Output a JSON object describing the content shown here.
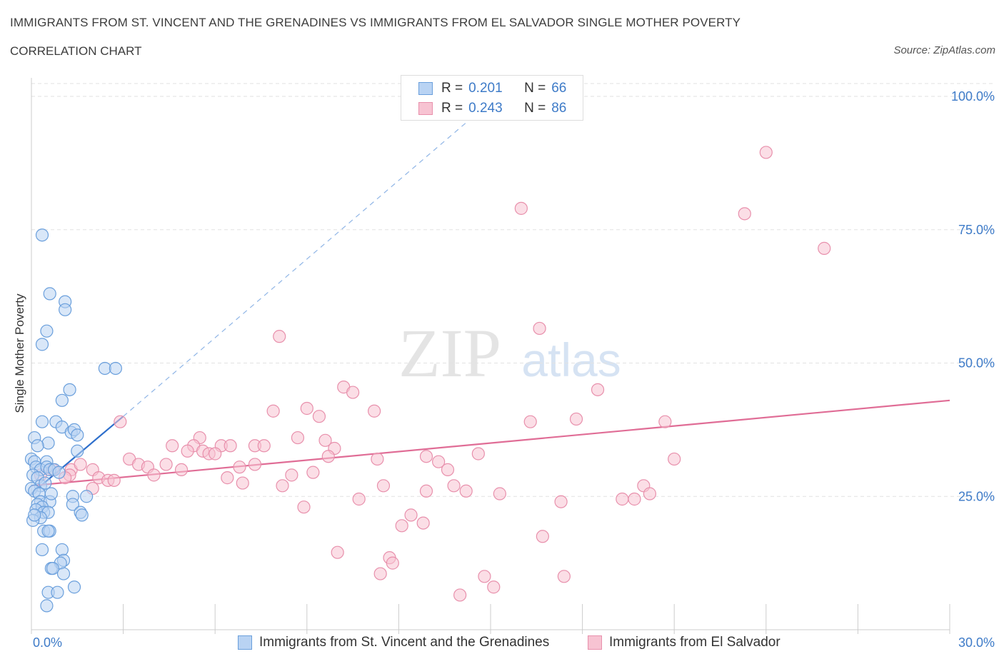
{
  "header": {
    "title": "IMMIGRANTS FROM ST. VINCENT AND THE GRENADINES VS IMMIGRANTS FROM EL SALVADOR SINGLE MOTHER POVERTY",
    "subtitle": "CORRELATION CHART",
    "source": "Source: ZipAtlas.com"
  },
  "watermark": {
    "zip": "ZIP",
    "atlas": "atlas"
  },
  "legend": {
    "r_label": "R =",
    "n_label": "N =",
    "series1": {
      "r": "0.201",
      "n": "66"
    },
    "series2": {
      "r": "0.243",
      "n": "86"
    }
  },
  "bottom_legend": {
    "series1": "Immigrants from St. Vincent and the Grenadines",
    "series2": "Immigrants from El Salvador"
  },
  "colors": {
    "series1_fill": "#b9d3f3",
    "series1_stroke": "#6a9fdc",
    "series1_line": "#2e6fcc",
    "series2_fill": "#f7c3d2",
    "series2_stroke": "#e890ac",
    "series2_line": "#e06d96",
    "tick_label": "#3e7bc8"
  },
  "chart_data": {
    "type": "scatter",
    "title": "IMMIGRANTS FROM ST. VINCENT AND THE GRENADINES VS IMMIGRANTS FROM EL SALVADOR SINGLE MOTHER POVERTY",
    "xlabel": "",
    "ylabel": "Single Mother Poverty",
    "xlim": [
      0,
      30
    ],
    "ylim": [
      0,
      100
    ],
    "x_tick_labels": [
      "0.0%",
      "30.0%"
    ],
    "y_ticks": [
      25,
      50,
      75,
      100
    ],
    "y_tick_labels": [
      "25.0%",
      "50.0%",
      "75.0%",
      "100.0%"
    ],
    "grid": true,
    "legend_position": "top-center",
    "series": [
      {
        "name": "Immigrants from St. Vincent and the Grenadines",
        "r": 0.201,
        "n": 66,
        "trend": {
          "x": [
            0.0,
            3.0
          ],
          "y": [
            25.5,
            40.0
          ],
          "extended_to": [
            15.0,
            99.0
          ]
        },
        "points": [
          [
            0.35,
            74.0
          ],
          [
            0.6,
            63.0
          ],
          [
            1.1,
            61.5
          ],
          [
            0.5,
            56.0
          ],
          [
            1.1,
            60.0
          ],
          [
            0.35,
            53.5
          ],
          [
            2.4,
            49.0
          ],
          [
            2.75,
            49.0
          ],
          [
            1.25,
            45.0
          ],
          [
            1.0,
            43.0
          ],
          [
            0.35,
            39.0
          ],
          [
            0.8,
            39.0
          ],
          [
            0.1,
            36.0
          ],
          [
            0.55,
            35.0
          ],
          [
            1.0,
            38.0
          ],
          [
            1.3,
            37.0
          ],
          [
            1.4,
            37.5
          ],
          [
            1.5,
            36.5
          ],
          [
            0.2,
            34.5
          ],
          [
            1.5,
            33.5
          ],
          [
            0.0,
            32.0
          ],
          [
            0.1,
            31.5
          ],
          [
            0.5,
            31.5
          ],
          [
            0.15,
            30.5
          ],
          [
            0.3,
            30.0
          ],
          [
            0.5,
            30.5
          ],
          [
            0.6,
            30.0
          ],
          [
            0.75,
            30.0
          ],
          [
            0.9,
            29.5
          ],
          [
            0.05,
            29.0
          ],
          [
            0.2,
            28.5
          ],
          [
            0.3,
            27.0
          ],
          [
            0.45,
            27.5
          ],
          [
            0.0,
            26.5
          ],
          [
            0.1,
            26.0
          ],
          [
            0.25,
            25.5
          ],
          [
            1.35,
            25.0
          ],
          [
            1.8,
            25.0
          ],
          [
            0.3,
            24.0
          ],
          [
            0.6,
            24.0
          ],
          [
            0.2,
            23.5
          ],
          [
            0.35,
            23.0
          ],
          [
            1.35,
            23.5
          ],
          [
            0.15,
            22.5
          ],
          [
            0.4,
            22.0
          ],
          [
            0.55,
            22.0
          ],
          [
            1.6,
            22.0
          ],
          [
            0.3,
            21.0
          ],
          [
            1.65,
            21.5
          ],
          [
            0.05,
            20.5
          ],
          [
            0.4,
            18.5
          ],
          [
            0.6,
            18.5
          ],
          [
            0.55,
            18.5
          ],
          [
            0.35,
            15.0
          ],
          [
            1.0,
            15.0
          ],
          [
            1.05,
            13.0
          ],
          [
            0.95,
            12.5
          ],
          [
            0.65,
            11.5
          ],
          [
            0.7,
            11.5
          ],
          [
            1.05,
            10.5
          ],
          [
            1.4,
            8.0
          ],
          [
            0.55,
            7.0
          ],
          [
            0.85,
            7.0
          ],
          [
            0.5,
            4.5
          ],
          [
            0.1,
            21.5
          ],
          [
            0.65,
            25.5
          ]
        ]
      },
      {
        "name": "Immigrants from El Salvador",
        "r": 0.243,
        "n": 86,
        "trend": {
          "x": [
            0.0,
            30.0
          ],
          "y": [
            27.0,
            43.0
          ]
        },
        "points": [
          [
            24.0,
            89.5
          ],
          [
            16.0,
            79.0
          ],
          [
            23.3,
            78.0
          ],
          [
            25.9,
            71.5
          ],
          [
            16.6,
            56.5
          ],
          [
            8.1,
            55.0
          ],
          [
            10.2,
            45.5
          ],
          [
            10.5,
            44.5
          ],
          [
            18.5,
            45.0
          ],
          [
            7.9,
            41.0
          ],
          [
            9.0,
            41.5
          ],
          [
            9.4,
            40.0
          ],
          [
            11.2,
            41.0
          ],
          [
            16.3,
            39.0
          ],
          [
            17.8,
            39.5
          ],
          [
            20.7,
            39.0
          ],
          [
            2.9,
            39.0
          ],
          [
            4.6,
            34.5
          ],
          [
            5.5,
            36.0
          ],
          [
            5.3,
            34.5
          ],
          [
            5.1,
            33.5
          ],
          [
            5.6,
            33.5
          ],
          [
            5.8,
            33.0
          ],
          [
            6.2,
            34.5
          ],
          [
            6.0,
            33.0
          ],
          [
            6.5,
            34.5
          ],
          [
            7.3,
            34.5
          ],
          [
            7.6,
            34.5
          ],
          [
            8.7,
            36.0
          ],
          [
            9.6,
            35.5
          ],
          [
            9.9,
            34.0
          ],
          [
            9.7,
            32.5
          ],
          [
            7.3,
            31.0
          ],
          [
            6.8,
            30.5
          ],
          [
            3.2,
            32.0
          ],
          [
            3.5,
            31.0
          ],
          [
            4.4,
            31.0
          ],
          [
            4.9,
            30.0
          ],
          [
            3.8,
            30.5
          ],
          [
            2.0,
            30.0
          ],
          [
            2.2,
            28.5
          ],
          [
            2.5,
            28.0
          ],
          [
            2.7,
            28.0
          ],
          [
            1.3,
            30.0
          ],
          [
            1.6,
            31.0
          ],
          [
            1.25,
            29.0
          ],
          [
            0.7,
            30.0
          ],
          [
            0.3,
            29.0
          ],
          [
            1.1,
            28.5
          ],
          [
            4.0,
            29.0
          ],
          [
            6.4,
            28.5
          ],
          [
            6.9,
            27.5
          ],
          [
            8.2,
            27.0
          ],
          [
            8.5,
            29.0
          ],
          [
            11.3,
            32.0
          ],
          [
            13.3,
            31.5
          ],
          [
            13.6,
            30.0
          ],
          [
            12.9,
            32.5
          ],
          [
            14.6,
            33.0
          ],
          [
            15.3,
            25.5
          ],
          [
            11.5,
            27.0
          ],
          [
            10.7,
            24.5
          ],
          [
            12.9,
            26.0
          ],
          [
            13.8,
            27.0
          ],
          [
            14.2,
            26.0
          ],
          [
            17.3,
            24.0
          ],
          [
            19.3,
            24.5
          ],
          [
            19.7,
            24.5
          ],
          [
            20.0,
            27.0
          ],
          [
            20.2,
            25.5
          ],
          [
            21.0,
            32.0
          ],
          [
            8.9,
            23.0
          ],
          [
            12.4,
            21.5
          ],
          [
            12.1,
            19.5
          ],
          [
            12.8,
            20.0
          ],
          [
            16.7,
            17.5
          ],
          [
            10.0,
            14.5
          ],
          [
            11.7,
            13.5
          ],
          [
            11.8,
            12.5
          ],
          [
            11.4,
            10.5
          ],
          [
            14.0,
            6.5
          ],
          [
            14.8,
            10.0
          ],
          [
            15.1,
            8.0
          ],
          [
            17.4,
            10.0
          ],
          [
            9.2,
            29.5
          ],
          [
            2.0,
            26.5
          ]
        ]
      }
    ]
  }
}
